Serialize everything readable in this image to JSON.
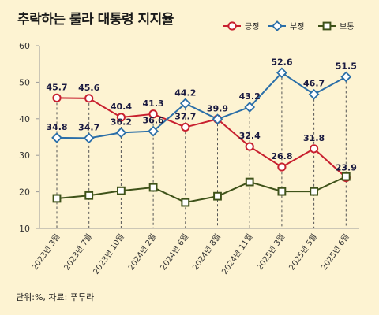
{
  "title": "추락하는 룰라 대통령 지지율",
  "footer": "단위:%, 자료: 푸투라",
  "chart_data": {
    "type": "line",
    "title": "추락하는 룰라 대통령 지지율",
    "categories": [
      "2023년 3월",
      "2023년 7월",
      "2023년 10월",
      "2024년 2월",
      "2024년 6월",
      "2024년 8월",
      "2024년 11월",
      "2025년 3월",
      "2025년 5월",
      "2025년 6월"
    ],
    "ylim": [
      10,
      60
    ],
    "yticks": [
      10,
      20,
      30,
      40,
      50,
      60
    ],
    "grid": false,
    "legend_position": "top-right",
    "series": [
      {
        "name": "긍정",
        "color": "#c8202f",
        "marker": "circle",
        "values": [
          45.7,
          45.6,
          40.4,
          41.3,
          37.7,
          39.9,
          32.4,
          26.8,
          31.8,
          23.9
        ],
        "labeled": true
      },
      {
        "name": "부정",
        "color": "#2a6ea8",
        "marker": "diamond",
        "values": [
          34.8,
          34.7,
          36.2,
          36.6,
          44.2,
          39.9,
          43.2,
          52.6,
          46.7,
          51.5
        ],
        "labeled": true
      },
      {
        "name": "보통",
        "color": "#3e5219",
        "marker": "square",
        "values": [
          18.2,
          19.0,
          20.3,
          21.2,
          17.1,
          18.8,
          22.7,
          20.1,
          20.1,
          24.2
        ],
        "labeled": false
      }
    ],
    "point_labels": {
      "긍정": [
        "45.7",
        "45.6",
        "40.4",
        "41.3",
        "37.7",
        "39.9",
        "32.4",
        "26.8",
        "31.8",
        "23.9"
      ],
      "부정": [
        "34.8",
        "34.7",
        "36.2",
        "36.6",
        "44.2",
        "",
        "43.2",
        "52.6",
        "46.7",
        "51.5"
      ]
    }
  }
}
